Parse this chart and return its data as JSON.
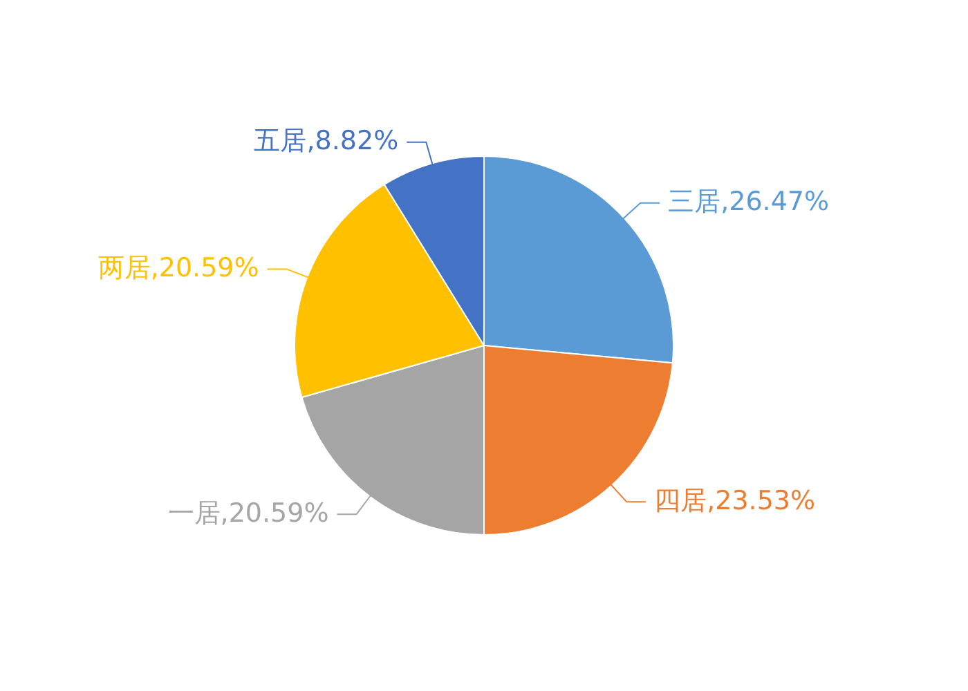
{
  "chart_data": {
    "type": "pie",
    "categories": [
      "三居",
      "四居",
      "一居",
      "两居",
      "五居"
    ],
    "values": [
      26.47,
      23.53,
      20.59,
      20.59,
      8.82
    ],
    "value_labels": [
      "26.47%",
      "23.53%",
      "20.59%",
      "20.59%",
      "8.82%"
    ],
    "colors": [
      "#5b9bd5",
      "#ed7d31",
      "#a5a5a5",
      "#ffc000",
      "#4472c4"
    ]
  }
}
